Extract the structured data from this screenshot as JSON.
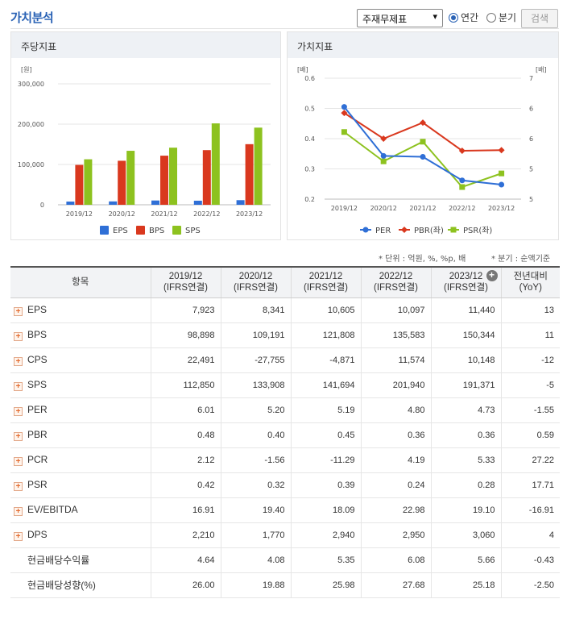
{
  "header": {
    "title": "가치분석",
    "select_value": "주재무제표",
    "radio_annual": "연간",
    "radio_quarter": "분기",
    "search_label": "검색"
  },
  "panels": {
    "left_title": "주당지표",
    "right_title": "가치지표"
  },
  "chart_data": [
    {
      "type": "bar",
      "title": "주당지표",
      "ylabel": "[원]",
      "categories": [
        "2019/12",
        "2020/12",
        "2021/12",
        "2022/12",
        "2023/12"
      ],
      "y_ticks": [
        "0",
        "100,000",
        "200,000",
        "300,000"
      ],
      "ylim": [
        0,
        300000
      ],
      "legend_position": "bottom",
      "series": [
        {
          "name": "EPS",
          "color": "#2f6fd6",
          "values": [
            7923,
            8341,
            10605,
            10097,
            11440
          ]
        },
        {
          "name": "BPS",
          "color": "#d9381e",
          "values": [
            98898,
            109191,
            121808,
            135583,
            150344
          ]
        },
        {
          "name": "SPS",
          "color": "#8dc21f",
          "values": [
            112850,
            133908,
            141694,
            201940,
            191371
          ]
        }
      ]
    },
    {
      "type": "line",
      "title": "가치지표",
      "ylabel_left": "[배]",
      "ylabel_right": "[배]",
      "categories": [
        "2019/12",
        "2020/12",
        "2021/12",
        "2022/12",
        "2023/12"
      ],
      "y_ticks_left": [
        "0.2",
        "0.3",
        "0.4",
        "0.5",
        "0.6"
      ],
      "y_ticks_right": [
        "5",
        "5",
        "6",
        "6",
        "7"
      ],
      "ylim_left": [
        0.2,
        0.6
      ],
      "legend_position": "bottom",
      "series": [
        {
          "name": "PER",
          "color": "#2f6fd6",
          "marker": "circle",
          "plot": [
            0.505,
            0.343,
            0.34,
            0.262,
            0.248
          ]
        },
        {
          "name": "PBR(좌)",
          "color": "#d9381e",
          "marker": "diamond",
          "plot": [
            0.485,
            0.4,
            0.453,
            0.36,
            0.362
          ]
        },
        {
          "name": "PSR(좌)",
          "color": "#8dc21f",
          "marker": "square",
          "plot": [
            0.422,
            0.325,
            0.39,
            0.24,
            0.285
          ]
        }
      ]
    }
  ],
  "notes": {
    "unit": "* 단위 : 억원, %, %p, 배",
    "basis": "* 분기 : 순액기준"
  },
  "table": {
    "col_item": "항목",
    "periods": [
      {
        "year": "2019/12",
        "basis": "(IFRS연결)"
      },
      {
        "year": "2020/12",
        "basis": "(IFRS연결)"
      },
      {
        "year": "2021/12",
        "basis": "(IFRS연결)"
      },
      {
        "year": "2022/12",
        "basis": "(IFRS연결)"
      },
      {
        "year": "2023/12",
        "basis": "(IFRS연결)"
      }
    ],
    "yoy_title": "전년대비",
    "yoy_sub": "(YoY)",
    "rows": [
      {
        "name": "EPS",
        "expand": true,
        "values": [
          "7,923",
          "8,341",
          "10,605",
          "10,097",
          "11,440"
        ],
        "yoy": "13"
      },
      {
        "name": "BPS",
        "expand": true,
        "values": [
          "98,898",
          "109,191",
          "121,808",
          "135,583",
          "150,344"
        ],
        "yoy": "11"
      },
      {
        "name": "CPS",
        "expand": true,
        "values": [
          "22,491",
          "-27,755",
          "-4,871",
          "11,574",
          "10,148"
        ],
        "yoy": "-12"
      },
      {
        "name": "SPS",
        "expand": true,
        "values": [
          "112,850",
          "133,908",
          "141,694",
          "201,940",
          "191,371"
        ],
        "yoy": "-5"
      },
      {
        "name": "PER",
        "expand": true,
        "values": [
          "6.01",
          "5.20",
          "5.19",
          "4.80",
          "4.73"
        ],
        "yoy": "-1.55"
      },
      {
        "name": "PBR",
        "expand": true,
        "values": [
          "0.48",
          "0.40",
          "0.45",
          "0.36",
          "0.36"
        ],
        "yoy": "0.59"
      },
      {
        "name": "PCR",
        "expand": true,
        "values": [
          "2.12",
          "-1.56",
          "-11.29",
          "4.19",
          "5.33"
        ],
        "yoy": "27.22"
      },
      {
        "name": "PSR",
        "expand": true,
        "values": [
          "0.42",
          "0.32",
          "0.39",
          "0.24",
          "0.28"
        ],
        "yoy": "17.71"
      },
      {
        "name": "EV/EBITDA",
        "expand": true,
        "values": [
          "16.91",
          "19.40",
          "18.09",
          "22.98",
          "19.10"
        ],
        "yoy": "-16.91"
      },
      {
        "name": "DPS",
        "expand": true,
        "values": [
          "2,210",
          "1,770",
          "2,940",
          "2,950",
          "3,060"
        ],
        "yoy": "4"
      },
      {
        "name": "현금배당수익률",
        "expand": false,
        "values": [
          "4.64",
          "4.08",
          "5.35",
          "6.08",
          "5.66"
        ],
        "yoy": "-0.43"
      },
      {
        "name": "현금배당성향(%)",
        "expand": false,
        "values": [
          "26.00",
          "19.88",
          "25.98",
          "27.68",
          "25.18"
        ],
        "yoy": "-2.50"
      }
    ]
  }
}
